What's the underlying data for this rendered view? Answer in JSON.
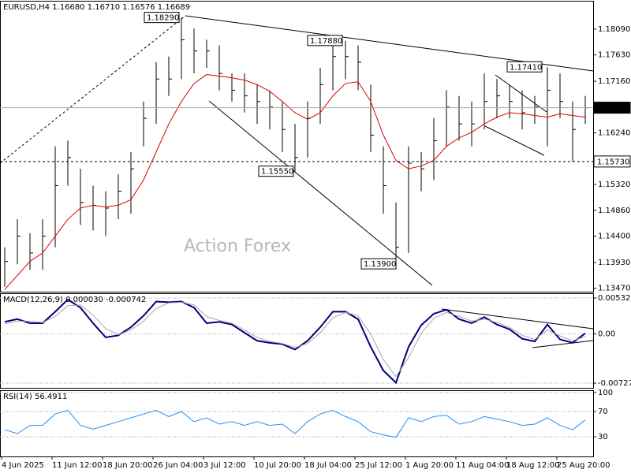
{
  "chart_data": [
    {
      "type": "ohlc",
      "title": "EURUSD,H4  1.16680 1.16710 1.16576 1.16689",
      "watermark": "Action Forex",
      "color": "#000000",
      "categories": [
        "4 Jun 2025",
        null,
        null,
        null,
        "11 Jun 12:00",
        null,
        null,
        null,
        "18 Jun 20:00",
        null,
        null,
        null,
        "26 Jun 04:00",
        null,
        null,
        null,
        "3 Jul 12:00",
        null,
        null,
        null,
        "10 Jul 20:00",
        null,
        null,
        null,
        "18 Jul 04:00",
        null,
        null,
        null,
        "25 Jul 12:00",
        null,
        null,
        null,
        "1 Aug 20:00",
        null,
        null,
        null,
        "11 Aug 04:00",
        null,
        null,
        null,
        "18 Aug 12:00",
        null,
        null,
        null,
        "25 Aug 20:00",
        null,
        null
      ],
      "high": [
        1.142,
        1.147,
        1.1445,
        1.147,
        1.16,
        1.161,
        1.156,
        1.153,
        1.152,
        1.155,
        1.159,
        1.168,
        1.175,
        1.176,
        1.1829,
        1.181,
        1.179,
        1.178,
        1.173,
        1.173,
        1.171,
        1.17,
        1.168,
        1.164,
        1.168,
        1.174,
        1.178,
        1.1788,
        1.178,
        1.171,
        1.16,
        1.15,
        1.16,
        1.159,
        1.165,
        1.17,
        1.169,
        1.168,
        1.173,
        1.172,
        1.171,
        1.17,
        1.169,
        1.1741,
        1.173,
        1.168,
        1.169
      ],
      "low": [
        1.135,
        1.139,
        1.138,
        1.138,
        1.142,
        1.153,
        1.146,
        1.145,
        1.144,
        1.147,
        1.148,
        1.16,
        1.164,
        1.169,
        1.172,
        1.173,
        1.174,
        1.17,
        1.168,
        1.166,
        1.164,
        1.163,
        1.159,
        1.1555,
        1.158,
        1.164,
        1.17,
        1.172,
        1.17,
        1.159,
        1.148,
        1.139,
        1.141,
        1.152,
        1.154,
        1.16,
        1.161,
        1.16,
        1.163,
        1.165,
        1.165,
        1.163,
        1.164,
        1.16,
        1.165,
        1.1573,
        1.164
      ],
      "close": [
        1.1395,
        1.144,
        1.141,
        1.144,
        1.153,
        1.158,
        1.15,
        1.1495,
        1.149,
        1.152,
        1.156,
        1.165,
        1.172,
        1.172,
        1.179,
        1.177,
        1.177,
        1.173,
        1.17,
        1.169,
        1.168,
        1.167,
        1.163,
        1.158,
        1.165,
        1.171,
        1.176,
        1.176,
        1.175,
        1.162,
        1.153,
        1.142,
        1.157,
        1.156,
        1.161,
        1.167,
        1.164,
        1.164,
        1.168,
        1.169,
        1.168,
        1.166,
        1.167,
        1.17,
        1.168,
        1.163,
        1.16689
      ],
      "overlays": [
        {
          "color": "#e00000",
          "values": [
            1.1345,
            1.137,
            1.1395,
            1.141,
            1.144,
            1.147,
            1.149,
            1.1495,
            1.1492,
            1.1495,
            1.1505,
            1.154,
            1.159,
            1.164,
            1.168,
            1.1712,
            1.1728,
            1.1725,
            1.1722,
            1.1718,
            1.171,
            1.1698,
            1.168,
            1.166,
            1.1648,
            1.166,
            1.169,
            1.1712,
            1.1715,
            1.168,
            1.162,
            1.1575,
            1.156,
            1.1565,
            1.1575,
            1.16,
            1.1615,
            1.1625,
            1.164,
            1.1652,
            1.166,
            1.1658,
            1.1655,
            1.1652,
            1.1658,
            1.1655,
            1.1652
          ]
        }
      ],
      "ylim": [
        1.1341,
        1.1858
      ],
      "yticks": [
        {
          "value": 1.1809,
          "label": "1.18090"
        },
        {
          "value": 1.1763,
          "label": "1.17630"
        },
        {
          "value": 1.1716,
          "label": "1.17160"
        },
        {
          "value": 1.1624,
          "label": "1.16240"
        },
        {
          "value": 1.1532,
          "label": "1.15320"
        },
        {
          "value": 1.1486,
          "label": "1.14860"
        },
        {
          "value": 1.144,
          "label": "1.14400"
        },
        {
          "value": 1.1393,
          "label": "1.13930"
        },
        {
          "value": 1.1347,
          "label": "1.13470"
        }
      ],
      "grid": false,
      "price_lines": [
        {
          "value": 1.16689,
          "label": "1.16689",
          "style": "solid"
        },
        {
          "value": 1.1573,
          "label": "1.15730",
          "style": "dashed"
        }
      ],
      "annotations": [
        {
          "value": 1.1829,
          "label": "1.18290"
        },
        {
          "value": 1.1788,
          "label": "1.17880"
        },
        {
          "value": 1.1741,
          "label": "1.17410"
        },
        {
          "value": 1.1555,
          "label": "1.15550"
        },
        {
          "value": 1.139,
          "label": "1.13900"
        }
      ]
    },
    {
      "type": "line",
      "title": "MACD(12,26,9) 0.000030 -0.000742",
      "ylim": [
        -0.00797,
        0.00603
      ],
      "yticks": [
        0.005325,
        {
          "value": 0,
          "label": "0.00"
        },
        -0.007273
      ],
      "grid": true,
      "series": [
        {
          "color": "#000080",
          "values": [
            0.0018,
            0.0022,
            0.0016,
            0.0016,
            0.0033,
            0.0051,
            0.0039,
            0.0016,
            -0.0005,
            -0.0002,
            0.001,
            0.0027,
            0.0048,
            0.0047,
            0.0048,
            0.0039,
            0.0016,
            0.0018,
            0.0014,
            0.0002,
            -0.001,
            -0.0013,
            -0.0015,
            -0.0023,
            -0.001,
            0.001,
            0.0033,
            0.0033,
            0.0022,
            -0.0019,
            -0.0054,
            -0.0072,
            -0.0019,
            0.0013,
            0.003,
            0.0036,
            0.0022,
            0.0016,
            0.0025,
            0.0014,
            0.0007,
            -0.0007,
            -0.0011,
            0.0014,
            -0.0008,
            -0.0013,
            0.0001
          ]
        },
        {
          "color": "#a8a8a8",
          "values": [
            0.0015,
            0.0019,
            0.0019,
            0.0017,
            0.0026,
            0.0042,
            0.0043,
            0.0028,
            0.0008,
            -0.0001,
            0.0006,
            0.0019,
            0.0038,
            0.0046,
            0.0047,
            0.0043,
            0.0026,
            0.002,
            0.0016,
            0.0006,
            -0.0005,
            -0.0011,
            -0.0014,
            -0.002,
            -0.0014,
            0.0002,
            0.0024,
            0.0032,
            0.0027,
            0,
            -0.0038,
            -0.0063,
            -0.0035,
            0.0001,
            0.0023,
            0.0032,
            0.0026,
            0.0019,
            0.0022,
            0.0017,
            0.001,
            -0.0002,
            -0.0008,
            0.0006,
            -0.0003,
            -0.001,
            -0.0004
          ]
        }
      ]
    },
    {
      "type": "line",
      "title": "RSI(14) 56.4911",
      "ylim": [
        0,
        100
      ],
      "yticks": [
        30,
        70,
        100
      ],
      "grid": true,
      "series": [
        {
          "color": "#1e90ff",
          "values": [
            41,
            35,
            48,
            48,
            66,
            72,
            48,
            42,
            48,
            54,
            60,
            66,
            72,
            62,
            70,
            54,
            60,
            50,
            54,
            48,
            54,
            48,
            50,
            35,
            54,
            66,
            72,
            62,
            54,
            38,
            33,
            29,
            60,
            54,
            62,
            64,
            50,
            54,
            62,
            58,
            54,
            48,
            50,
            60,
            48,
            41,
            56.4911
          ]
        }
      ]
    }
  ]
}
